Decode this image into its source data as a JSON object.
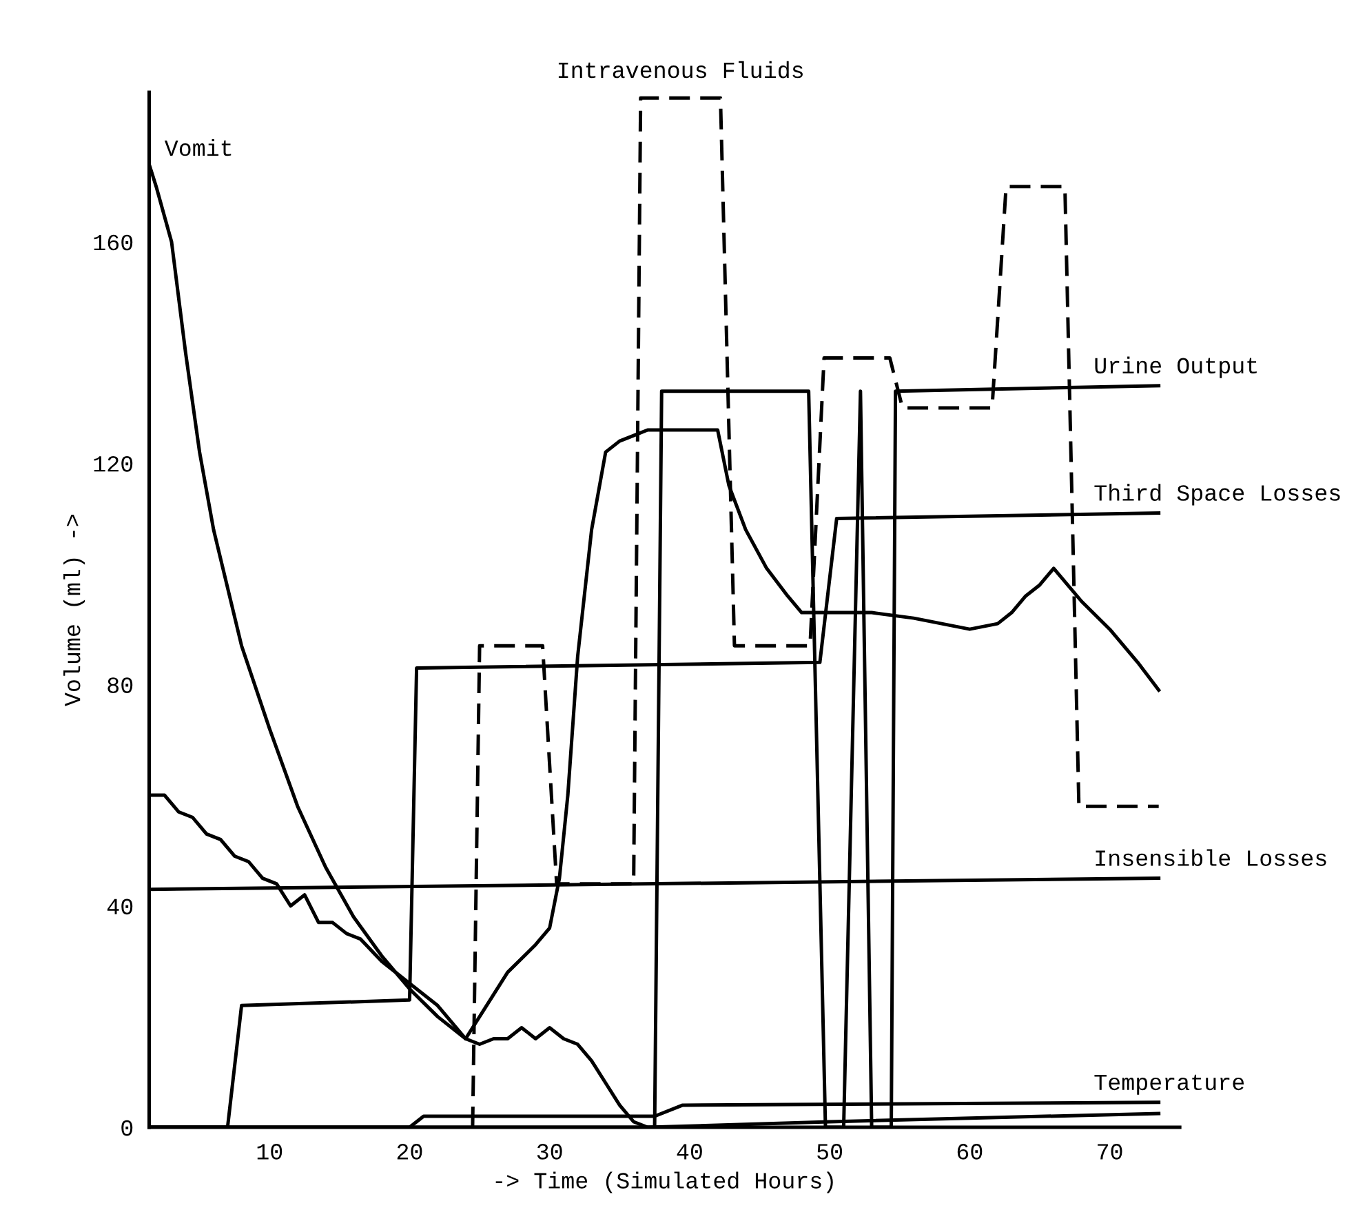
{
  "chart_data": {
    "type": "line",
    "xlabel": "-> Time (Simulated Hours)",
    "ylabel": "Volume (ml) ->",
    "xlim": [
      1.4,
      75
    ],
    "ylim": [
      0,
      187
    ],
    "xticks": [
      10,
      20,
      30,
      40,
      50,
      60,
      70
    ],
    "yticks": [
      0,
      40,
      80,
      120,
      160
    ],
    "grid": false,
    "legend": false,
    "marker": "none",
    "series": [
      {
        "name": "Vomit",
        "color": "#000000",
        "line_style": "solid",
        "x": [
          1.4,
          1.9,
          3,
          4,
          5,
          6,
          8,
          10,
          12,
          14,
          16,
          18,
          20,
          22,
          24,
          25,
          26,
          27,
          28,
          29,
          30,
          31,
          32,
          33,
          34,
          35,
          36,
          37,
          50,
          73.5
        ],
        "values": [
          174,
          170,
          160,
          140,
          122,
          108,
          87,
          72,
          58,
          47,
          38,
          31,
          25,
          20,
          16,
          15,
          16,
          16,
          18,
          16,
          18,
          16,
          15,
          12,
          8,
          4,
          1,
          0,
          1,
          2.5
        ]
      },
      {
        "color": "#000000",
        "line_style": "solid",
        "x": [
          1.4,
          2.5,
          3.5,
          4.5,
          5.5,
          6.5,
          7.5,
          8.5,
          9.5,
          10.5,
          11.5,
          12.5,
          13.5,
          14.5,
          15.5,
          16.5,
          18,
          20,
          22,
          24,
          25.5,
          27,
          29,
          30,
          30.7,
          31.3,
          32,
          33,
          34,
          35,
          36,
          37,
          39,
          41,
          42,
          42.8,
          44,
          45.5,
          47,
          48,
          50,
          53,
          56,
          58,
          60,
          62,
          63,
          64,
          65,
          66,
          68,
          70,
          72,
          73.5
        ],
        "values": [
          60,
          60,
          57,
          56,
          53,
          52,
          49,
          48,
          45,
          44,
          40,
          42,
          37,
          37,
          35,
          34,
          30,
          26,
          22,
          16,
          22,
          28,
          33,
          36,
          45,
          60,
          85,
          108,
          122,
          124,
          125,
          126,
          126,
          126,
          126,
          116,
          108,
          101,
          96,
          93,
          93,
          93,
          92,
          91,
          90,
          91,
          93,
          96,
          98,
          101,
          95,
          90,
          84,
          79
        ]
      },
      {
        "name": "Intravenous Fluids",
        "color": "#000000",
        "line_style": "dashed",
        "x": [
          24.5,
          25,
          29.5,
          30.5,
          36,
          36.5,
          42.2,
          43.2,
          48.6,
          49.6,
          54.3,
          55.2,
          61.6,
          62.6,
          66.8,
          67.8,
          73.5
        ],
        "values": [
          0,
          87,
          87,
          44,
          44,
          186,
          186,
          87,
          87,
          139,
          139,
          130,
          130,
          170,
          170,
          58,
          58
        ]
      },
      {
        "name": "Urine Output",
        "color": "#000000",
        "line_style": "solid",
        "x": [
          1.4,
          37.5,
          38,
          48.5,
          49.7,
          51,
          52.2,
          53,
          54.4,
          54.7,
          73.5
        ],
        "values": [
          0,
          0,
          133,
          133,
          0,
          0,
          133,
          0,
          0,
          133,
          134
        ]
      },
      {
        "name": "Third Space Losses",
        "color": "#000000",
        "line_style": "solid",
        "x": [
          1.4,
          7,
          8,
          20,
          20.5,
          49.3,
          50.5,
          73.5
        ],
        "values": [
          0,
          0,
          22,
          23,
          83,
          84,
          110,
          111
        ]
      },
      {
        "name": "Insensible Losses",
        "color": "#000000",
        "line_style": "solid",
        "x": [
          1.4,
          73.5
        ],
        "values": [
          43,
          45
        ]
      },
      {
        "name": "Temperature",
        "color": "#000000",
        "line_style": "solid",
        "x": [
          1.4,
          20,
          21,
          37.5,
          39.5,
          73.5
        ],
        "values": [
          0,
          0,
          2,
          2,
          4,
          4.5
        ]
      }
    ]
  }
}
